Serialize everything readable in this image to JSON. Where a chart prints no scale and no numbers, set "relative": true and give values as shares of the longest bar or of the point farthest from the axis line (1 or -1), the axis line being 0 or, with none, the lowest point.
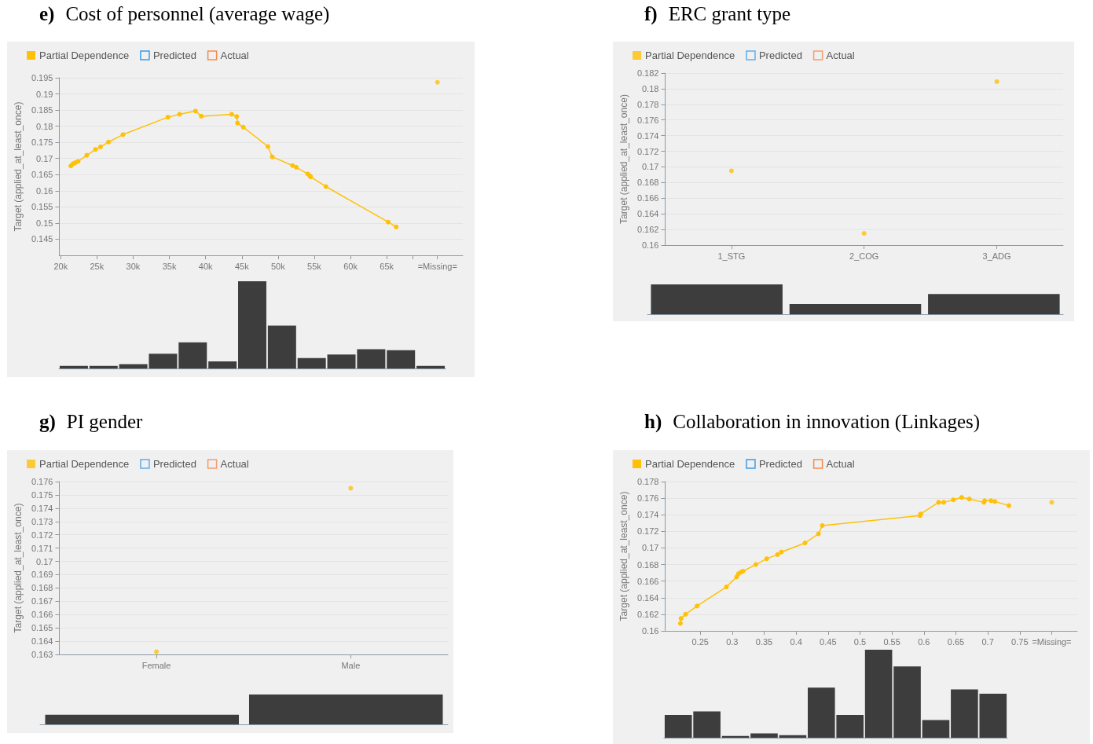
{
  "chart_data": [
    {
      "type": "line",
      "title": "e) Cost of personnel (average wage)",
      "ylabel": "Target (applied_at_least_once)",
      "legend": "top left",
      "grid": "y",
      "marker": "circle",
      "line_style": "solid",
      "xlim": [
        19800,
        75500
      ],
      "xticks": [
        {
          "value": 20000,
          "label": "20k"
        },
        {
          "value": 25000,
          "label": "25k"
        },
        {
          "value": 30000,
          "label": "30k"
        },
        {
          "value": 35000,
          "label": "35k"
        },
        {
          "value": 40000,
          "label": "40k"
        },
        {
          "value": 45000,
          "label": "45k"
        },
        {
          "value": 50000,
          "label": "50k"
        },
        {
          "value": 55000,
          "label": "55k"
        },
        {
          "value": 60000,
          "label": "60k"
        },
        {
          "value": 65000,
          "label": "65k"
        },
        {
          "value": 68600,
          "label": null
        },
        {
          "value": 72000,
          "label": "=Missing="
        }
      ],
      "ylim": [
        0.14,
        0.195
      ],
      "yticks": [
        0.145,
        0.15,
        0.155,
        0.16,
        0.165,
        0.17,
        0.175,
        0.18,
        0.185,
        0.19,
        0.195
      ],
      "series": [
        {
          "name": "Partial Dependence",
          "color": "#ffc107",
          "x": [
            21400,
            21700,
            22000,
            22400,
            23600,
            24800,
            25500,
            26600,
            28600,
            34800,
            36400,
            38600,
            39400,
            43600,
            44300,
            44400,
            45200,
            48600,
            49200,
            52000,
            52500,
            54100,
            54400,
            54500,
            56600,
            65200,
            66300
          ],
          "values": [
            0.1677,
            0.1684,
            0.1687,
            0.1691,
            0.171,
            0.1728,
            0.1736,
            0.1751,
            0.1774,
            0.1828,
            0.1837,
            0.1847,
            0.1831,
            0.1837,
            0.183,
            0.181,
            0.1797,
            0.1737,
            0.1705,
            0.1678,
            0.1673,
            0.1652,
            0.1646,
            0.1643,
            0.1613,
            0.1503,
            0.1488
          ]
        },
        {
          "type": "scatter",
          "color": "#ffc107",
          "x": [
            72000
          ],
          "values": [
            0.1936
          ]
        },
        {
          "name": "Predicted",
          "color": "#3b9be8"
        },
        {
          "name": "Actual",
          "color": "#f58a4c"
        }
      ]
    },
    {
      "type": "bar",
      "relative": true,
      "color": "#3d3d3d",
      "categories": [
        null,
        null,
        null,
        null,
        null,
        null,
        null,
        null,
        null,
        null,
        null,
        null,
        null
      ],
      "values": [
        0.03,
        0.03,
        0.05,
        0.17,
        0.3,
        0.08,
        1,
        0.49,
        0.12,
        0.16,
        0.22,
        0.21,
        0.03
      ]
    },
    {
      "type": "scatter",
      "title": "f) ERC grant type",
      "ylabel": "Target (applied_at_least_once)",
      "legend": "top left",
      "grid": "y",
      "marker": "circle",
      "categories": [
        "1_STG",
        "2_COG",
        "3_ADG"
      ],
      "ylim": [
        0.16,
        0.182
      ],
      "yticks": [
        0.16,
        0.162,
        0.164,
        0.166,
        0.168,
        0.17,
        0.172,
        0.174,
        0.176,
        0.178,
        0.18,
        0.182
      ],
      "series": [
        {
          "name": "Partial Dependence",
          "color": "#ffc107",
          "values": [
            0.1695,
            0.1615,
            0.1809
          ]
        },
        {
          "name": "Predicted",
          "color": "#3b9be8",
          "values": [
            null,
            null,
            null
          ]
        },
        {
          "name": "Actual",
          "color": "#f58a4c",
          "values": [
            null,
            null,
            null
          ]
        }
      ]
    },
    {
      "type": "bar",
      "relative": true,
      "color": "#3d3d3d",
      "categories": [
        null,
        null,
        null
      ],
      "values": [
        1,
        0.34,
        0.68
      ]
    },
    {
      "type": "scatter",
      "title": "g) PI gender",
      "ylabel": "Target (applied_at_least_once)",
      "legend": "top left",
      "grid": "y",
      "marker": "circle",
      "categories": [
        "Female",
        "Male"
      ],
      "ylim": [
        0.163,
        0.176
      ],
      "yticks": [
        0.163,
        0.164,
        0.165,
        0.166,
        0.167,
        0.168,
        0.169,
        0.17,
        0.171,
        0.172,
        0.173,
        0.174,
        0.175,
        0.176
      ],
      "series": [
        {
          "name": "Partial Dependence",
          "color": "#ffc107",
          "values": [
            0.1632,
            0.1755
          ]
        },
        {
          "name": "Predicted",
          "color": "#3b9be8",
          "values": [
            null,
            null
          ]
        },
        {
          "name": "Actual",
          "color": "#f58a4c",
          "values": [
            null,
            null
          ]
        }
      ]
    },
    {
      "type": "bar",
      "relative": true,
      "color": "#3d3d3d",
      "categories": [
        null,
        null
      ],
      "values": [
        0.32,
        1
      ]
    },
    {
      "type": "line",
      "title": "h) Collaboration in innovation (Linkages)",
      "ylabel": "Target (applied_at_least_once)",
      "legend": "top left",
      "grid": "y",
      "marker": "circle",
      "line_style": "solid",
      "xlim": [
        0.195,
        0.84
      ],
      "xticks": [
        0.25,
        0.3,
        0.35,
        0.4,
        0.45,
        0.5,
        0.55,
        0.6,
        0.65,
        0.7,
        0.75,
        {
          "value": 0.8,
          "label": "=Missing="
        }
      ],
      "ylim": [
        0.16,
        0.178
      ],
      "yticks": [
        0.16,
        0.162,
        0.164,
        0.166,
        0.168,
        0.17,
        0.172,
        0.174,
        0.176,
        0.178
      ],
      "series": [
        {
          "name": "Partial Dependence",
          "color": "#ffc107",
          "x": [
            0.219,
            0.22,
            0.227,
            0.245,
            0.291,
            0.307,
            0.31,
            0.314,
            0.317,
            0.337,
            0.354,
            0.371,
            0.377,
            0.414,
            0.435,
            0.441,
            0.594,
            0.595,
            0.623,
            0.631,
            0.646,
            0.659,
            0.671,
            0.694,
            0.695,
            0.705,
            0.711,
            0.733
          ],
          "values": [
            0.1609,
            0.1615,
            0.162,
            0.163,
            0.1653,
            0.1665,
            0.1669,
            0.1671,
            0.1672,
            0.168,
            0.1687,
            0.1692,
            0.1695,
            0.1706,
            0.1717,
            0.1727,
            0.1739,
            0.1741,
            0.1755,
            0.1755,
            0.1758,
            0.1761,
            0.1759,
            0.1755,
            0.1757,
            0.1757,
            0.1756,
            0.1751
          ]
        },
        {
          "type": "scatter",
          "color": "#ffc107",
          "x": [
            0.8
          ],
          "values": [
            0.1755
          ]
        },
        {
          "name": "Predicted",
          "color": "#3b9be8"
        },
        {
          "name": "Actual",
          "color": "#f58a4c"
        }
      ]
    },
    {
      "type": "bar",
      "relative": true,
      "color": "#3d3d3d",
      "categories": [
        null,
        null,
        null,
        null,
        null,
        null,
        null,
        null,
        null,
        null,
        null,
        null
      ],
      "values": [
        0.26,
        0.3,
        0.02,
        0.05,
        0.03,
        0.57,
        0.26,
        1,
        0.81,
        0.2,
        0.55,
        0.5
      ]
    }
  ]
}
